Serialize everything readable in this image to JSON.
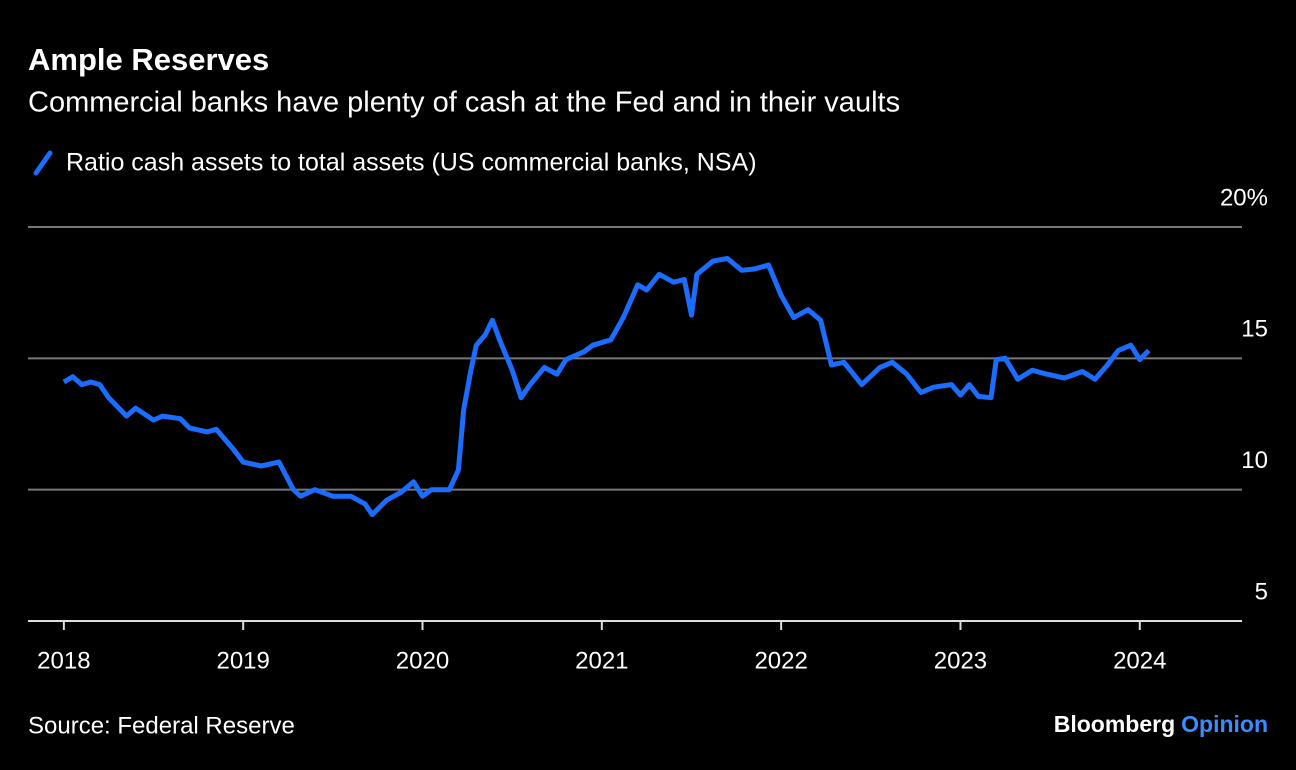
{
  "chart_data": {
    "type": "line",
    "title": "Ample Reserves",
    "subtitle": "Commercial banks have plenty of cash at the Fed and in their vaults",
    "source": "Source: Federal Reserve",
    "brand": [
      "Bloomberg",
      "Opinion"
    ],
    "x": [
      2018.0,
      2018.05,
      2018.1,
      2018.15,
      2018.2,
      2018.25,
      2018.35,
      2018.4,
      2018.5,
      2018.55,
      2018.65,
      2018.7,
      2018.8,
      2018.85,
      2018.95,
      2019.0,
      2019.1,
      2019.2,
      2019.28,
      2019.32,
      2019.4,
      2019.5,
      2019.6,
      2019.68,
      2019.72,
      2019.8,
      2019.88,
      2019.95,
      2020.0,
      2020.05,
      2020.15,
      2020.2,
      2020.23,
      2020.27,
      2020.3,
      2020.35,
      2020.39,
      2020.43,
      2020.5,
      2020.55,
      2020.6,
      2020.68,
      2020.75,
      2020.8,
      2020.9,
      2020.95,
      2021.05,
      2021.12,
      2021.2,
      2021.25,
      2021.32,
      2021.4,
      2021.46,
      2021.5,
      2021.53,
      2021.62,
      2021.7,
      2021.78,
      2021.85,
      2021.93,
      2022.0,
      2022.07,
      2022.15,
      2022.22,
      2022.28,
      2022.35,
      2022.45,
      2022.55,
      2022.62,
      2022.7,
      2022.78,
      2022.85,
      2022.95,
      2023.0,
      2023.05,
      2023.1,
      2023.17,
      2023.2,
      2023.25,
      2023.32,
      2023.4,
      2023.48,
      2023.58,
      2023.68,
      2023.75,
      2023.82,
      2023.88,
      2023.95,
      2024.0,
      2024.05
    ],
    "series": [
      {
        "name": "Ratio cash assets to total assets (US commercial banks, NSA)",
        "color": "#1a6dff",
        "values": [
          14.1,
          14.3,
          14.0,
          14.1,
          14.0,
          13.5,
          12.8,
          13.1,
          12.65,
          12.8,
          12.7,
          12.35,
          12.2,
          12.3,
          11.5,
          11.05,
          10.9,
          11.05,
          10.0,
          9.75,
          10.0,
          9.75,
          9.75,
          9.45,
          9.05,
          9.6,
          9.9,
          10.3,
          9.75,
          10.0,
          10.0,
          10.75,
          13.05,
          14.55,
          15.5,
          15.9,
          16.45,
          15.7,
          14.55,
          13.5,
          14.0,
          14.65,
          14.4,
          14.95,
          15.25,
          15.5,
          15.7,
          16.55,
          17.8,
          17.6,
          18.2,
          17.9,
          18.0,
          16.65,
          18.2,
          18.7,
          18.8,
          18.35,
          18.4,
          18.55,
          17.4,
          16.55,
          16.85,
          16.45,
          14.75,
          14.85,
          14.0,
          14.65,
          14.85,
          14.4,
          13.7,
          13.9,
          14.0,
          13.6,
          14.0,
          13.55,
          13.5,
          14.95,
          15.0,
          14.2,
          14.55,
          14.4,
          14.25,
          14.5,
          14.2,
          14.75,
          15.3,
          15.5,
          14.95,
          15.3
        ]
      }
    ],
    "xlim": [
      2017.8,
      2024.57
    ],
    "xticks": [
      2018,
      2019,
      2020,
      2021,
      2022,
      2023,
      2024
    ],
    "ylim": [
      5,
      20
    ],
    "yticks": [
      5,
      10,
      15,
      {
        "value": 20,
        "label": "20%"
      }
    ],
    "grid": true
  }
}
